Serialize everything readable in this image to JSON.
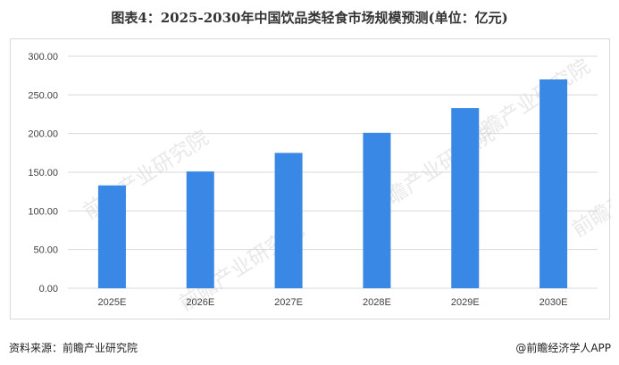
{
  "title": "图表4：2025-2030年中国饮品类轻食市场规模预测(单位：亿元)",
  "source": "资料来源：前瞻产业研究院",
  "credit": "@前瞻经济学人APP",
  "watermark": "前瞻产业研究院",
  "chart_data": {
    "type": "bar",
    "title": "图表4：2025-2030年中国饮品类轻食市场规模预测(单位：亿元)",
    "categories": [
      "2025E",
      "2026E",
      "2027E",
      "2028E",
      "2029E",
      "2030E"
    ],
    "values": [
      133,
      151,
      175,
      201,
      233,
      270
    ],
    "ylim": [
      0,
      300
    ],
    "yticks": [
      "0.00",
      "50.00",
      "100.00",
      "150.00",
      "200.00",
      "250.00",
      "300.00"
    ],
    "xlabel": "",
    "ylabel": "",
    "grid": true,
    "legend": "none",
    "bar_color": "#3a88e6",
    "grid_color": "#d9d9d9"
  }
}
